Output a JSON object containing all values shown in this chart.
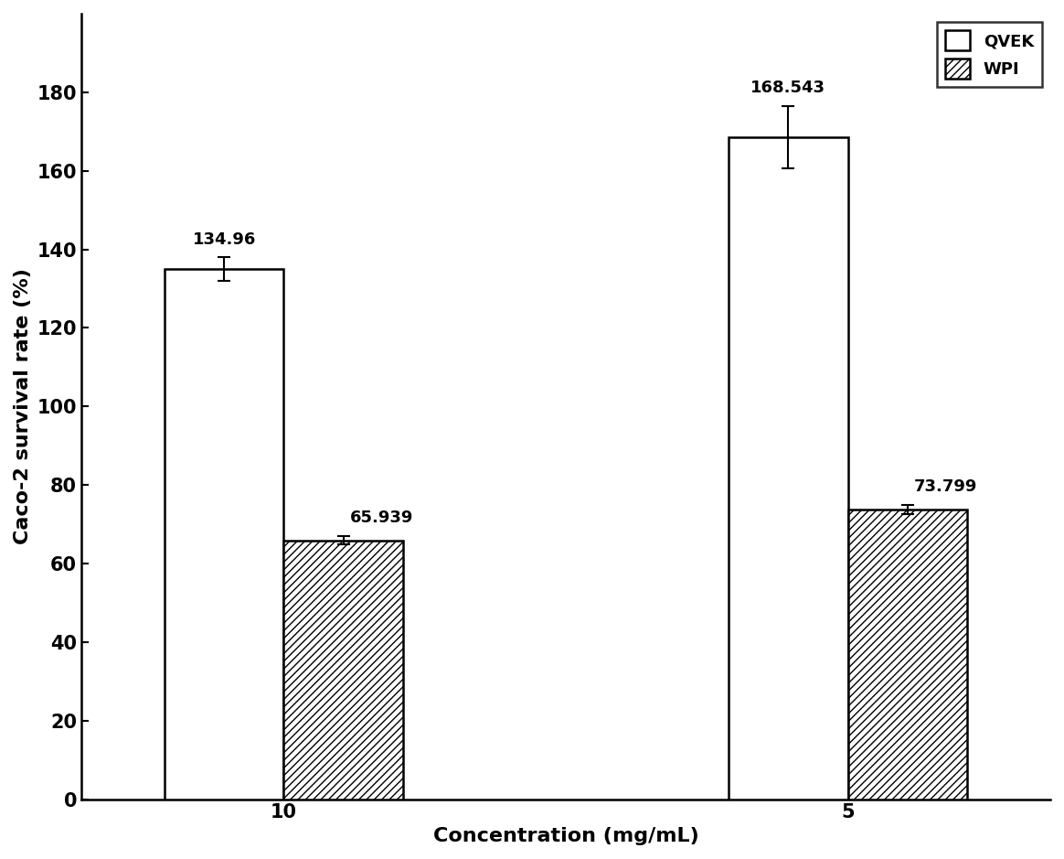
{
  "categories": [
    "10",
    "5"
  ],
  "qvek_values": [
    134.96,
    168.543
  ],
  "wpi_values": [
    65.939,
    73.799
  ],
  "qvek_errors": [
    3.0,
    8.0
  ],
  "wpi_errors": [
    1.0,
    1.2
  ],
  "ylabel": "Caco-2 survival rate (%)",
  "xlabel": "Concentration (mg/mL)",
  "ylim": [
    0,
    200
  ],
  "yticks": [
    0,
    20,
    40,
    60,
    80,
    100,
    120,
    140,
    160,
    180
  ],
  "legend_labels": [
    "QVEK",
    "WPI"
  ],
  "bar_width": 0.38,
  "group_centers": [
    1.0,
    2.8
  ],
  "background_color": "#ffffff",
  "qvek_facecolor": "#ffffff",
  "qvek_edgecolor": "#000000",
  "wpi_facecolor": "#ffffff",
  "wpi_edgecolor": "#000000",
  "label_fontsize": 16,
  "tick_fontsize": 15,
  "annotation_fontsize": 13,
  "legend_fontsize": 13
}
